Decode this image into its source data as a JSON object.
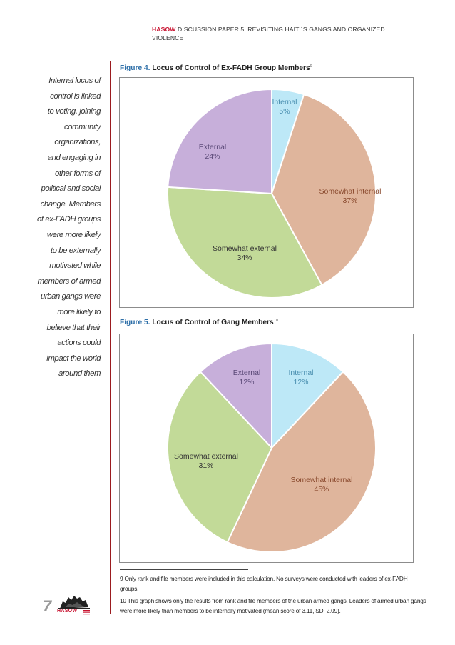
{
  "header": {
    "brand": "HASOW",
    "title": "DISCUSSION PAPER 5: REVISITING HAITI´S GANGS AND ORGANIZED VIOLENCE"
  },
  "sidebar": {
    "lines": [
      "Internal locus of",
      "control is linked",
      "to voting, joining",
      "community",
      "organizations,",
      "and engaging in",
      "other forms of",
      "political and social",
      "change. Members",
      "of ex-FADH groups",
      "were more likely",
      "to be externally",
      "motivated while",
      "members of armed",
      "urban gangs were",
      "more likely to",
      "believe that their",
      "actions could",
      "impact the world",
      "around them"
    ]
  },
  "figure4": {
    "number": "Figure 4.",
    "title": "Locus of Control of Ex-FADH Group Members",
    "note": "9"
  },
  "figure5": {
    "number": "Figure 5.",
    "title": "Locus of Control of Gang Members",
    "note": "10"
  },
  "chart_data": [
    {
      "type": "pie",
      "title": "Locus of Control of Ex-FADH Group Members",
      "categories": [
        "Internal",
        "Somewhat internal",
        "Somewhat external",
        "External"
      ],
      "values": [
        5,
        37,
        34,
        24
      ],
      "value_labels": [
        "5%",
        "37%",
        "34%",
        "24%"
      ],
      "colors": [
        "#bde8f7",
        "#dfb59c",
        "#c2da98",
        "#c7afda"
      ],
      "label_colors": [
        "#4a8fb0",
        "#8a4a2e",
        "#333333",
        "#5b4a78"
      ]
    },
    {
      "type": "pie",
      "title": "Locus of Control of Gang Members",
      "categories": [
        "Internal",
        "Somewhat internal",
        "Somewhat external",
        "External"
      ],
      "values": [
        12,
        45,
        31,
        12
      ],
      "value_labels": [
        "12%",
        "45%",
        "31%",
        "12%"
      ],
      "colors": [
        "#bde8f7",
        "#dfb59c",
        "#c2da98",
        "#c7afda"
      ],
      "label_colors": [
        "#4a8fb0",
        "#8a4a2e",
        "#333333",
        "#5b4a78"
      ]
    }
  ],
  "footnotes": [
    "9 Only rank and file members were included in this calculation.  No surveys were conducted with leaders of ex-FADH groups.",
    "10 This graph shows only the results from rank and file members of the urban armed gangs. Leaders of armed urban gangs were more likely than members to be internally motivated (mean score of 3.11, SD: 2.09)."
  ],
  "page_number": "7",
  "logo_text": "HASOW"
}
